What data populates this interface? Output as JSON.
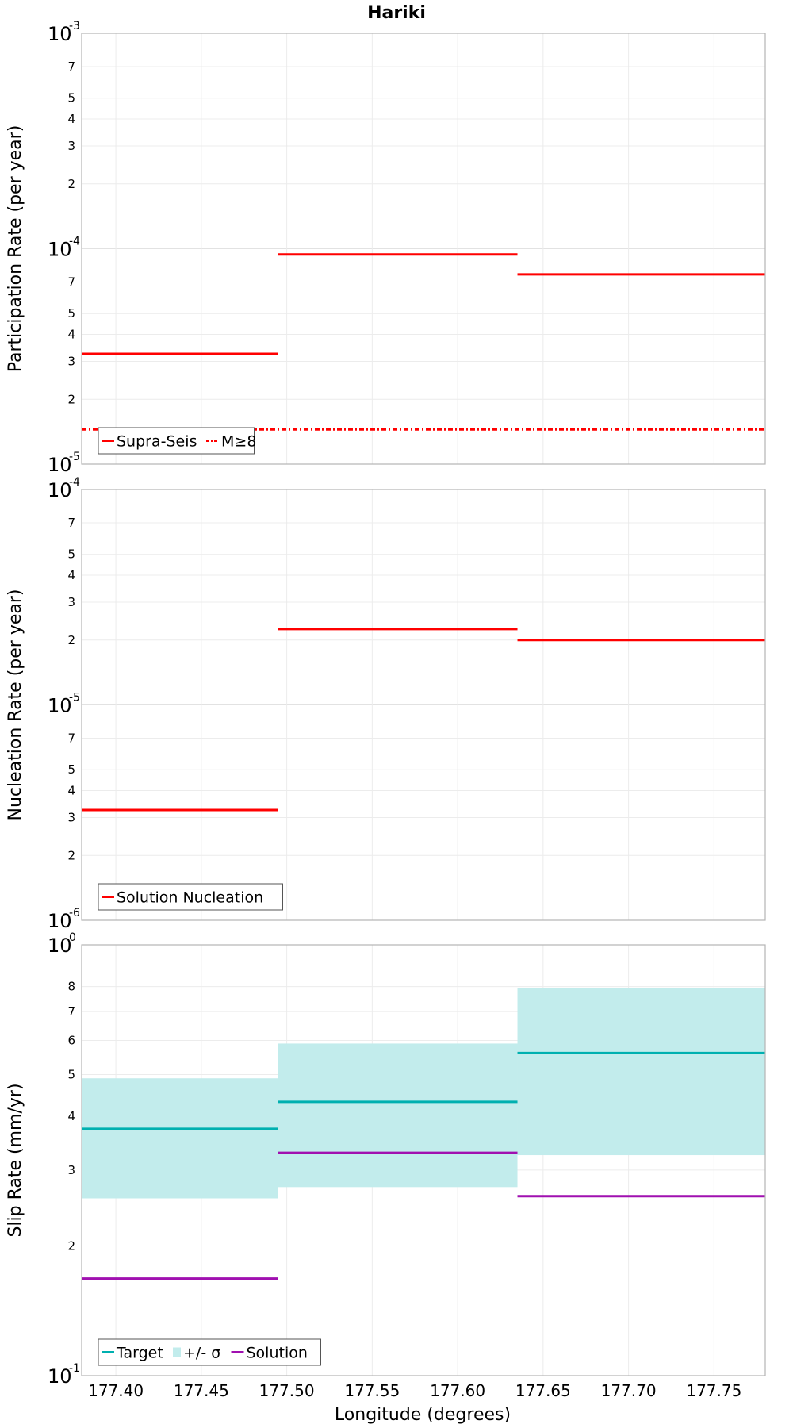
{
  "chart_data": {
    "title": "Hariki",
    "shared_x": {
      "label": "Longitude (degrees)",
      "range": [
        177.38,
        177.78
      ],
      "ticks": [
        177.4,
        177.45,
        177.5,
        177.55,
        177.6,
        177.65,
        177.7,
        177.75
      ],
      "tick_labels": [
        "177.40",
        "177.45",
        "177.50",
        "177.55",
        "177.60",
        "177.65",
        "177.70",
        "177.75"
      ]
    },
    "panels": [
      {
        "id": "participation",
        "type": "line",
        "ylabel": "Participation Rate (per year)",
        "yscale": "log",
        "ylim": [
          1e-05,
          0.001
        ],
        "decade_labels": [
          {
            "base": "10",
            "exp": "-5"
          },
          {
            "base": "10",
            "exp": "-4"
          },
          {
            "base": "10",
            "exp": "-3"
          }
        ],
        "minor_ticks": [
          2,
          3,
          4,
          5,
          7
        ],
        "grid": true,
        "legend_position": "bottom-left",
        "series": [
          {
            "name": "Supra-Seis",
            "color": "#ff0000",
            "style": "solid",
            "segments": [
              {
                "x": [
                  177.38,
                  177.495
                ],
                "y": 3.25e-05
              },
              {
                "x": [
                  177.495,
                  177.635
                ],
                "y": 9.4e-05
              },
              {
                "x": [
                  177.635,
                  177.78
                ],
                "y": 7.6e-05
              }
            ]
          },
          {
            "name": "M≥8",
            "color": "#ff0000",
            "style": "dash-dot",
            "segments": [
              {
                "x": [
                  177.38,
                  177.78
                ],
                "y": 1.45e-05
              }
            ]
          }
        ]
      },
      {
        "id": "nucleation",
        "type": "line",
        "ylabel": "Nucleation Rate (per year)",
        "yscale": "log",
        "ylim": [
          1e-06,
          0.0001
        ],
        "decade_labels": [
          {
            "base": "10",
            "exp": "-6"
          },
          {
            "base": "10",
            "exp": "-5"
          },
          {
            "base": "10",
            "exp": "-4"
          }
        ],
        "minor_ticks": [
          2,
          3,
          4,
          5,
          7
        ],
        "grid": true,
        "legend_position": "bottom-left",
        "series": [
          {
            "name": "Solution Nucleation",
            "color": "#ff0000",
            "style": "solid",
            "segments": [
              {
                "x": [
                  177.38,
                  177.495
                ],
                "y": 3.25e-06
              },
              {
                "x": [
                  177.495,
                  177.635
                ],
                "y": 2.25e-05
              },
              {
                "x": [
                  177.635,
                  177.78
                ],
                "y": 2e-05
              }
            ]
          }
        ]
      },
      {
        "id": "slip",
        "type": "line",
        "ylabel": "Slip Rate (mm/yr)",
        "yscale": "log",
        "ylim": [
          0.1,
          1.0
        ],
        "decade_labels": [
          {
            "base": "10",
            "exp": "-1"
          },
          {
            "base": "10",
            "exp": "0"
          }
        ],
        "minor_ticks": [
          2,
          3,
          4,
          5,
          6,
          7,
          8
        ],
        "grid": true,
        "legend_position": "bottom-left",
        "bands": [
          {
            "name": "+/- σ",
            "color": "#c2ecec",
            "segments": [
              {
                "x": [
                  177.38,
                  177.495
                ],
                "y": [
                  0.258,
                  0.49
                ]
              },
              {
                "x": [
                  177.495,
                  177.635
                ],
                "y": [
                  0.274,
                  0.59
                ]
              },
              {
                "x": [
                  177.635,
                  177.78
                ],
                "y": [
                  0.325,
                  0.795
                ]
              }
            ]
          }
        ],
        "series": [
          {
            "name": "Target",
            "color": "#00b0b0",
            "style": "solid",
            "segments": [
              {
                "x": [
                  177.38,
                  177.495
                ],
                "y": 0.374
              },
              {
                "x": [
                  177.495,
                  177.635
                ],
                "y": 0.432
              },
              {
                "x": [
                  177.635,
                  177.78
                ],
                "y": 0.561
              }
            ]
          },
          {
            "name": "Solution",
            "color": "#a010b0",
            "style": "solid",
            "segments": [
              {
                "x": [
                  177.38,
                  177.495
                ],
                "y": 0.168
              },
              {
                "x": [
                  177.495,
                  177.635
                ],
                "y": 0.329
              },
              {
                "x": [
                  177.635,
                  177.78
                ],
                "y": 0.261
              }
            ]
          }
        ]
      }
    ]
  }
}
